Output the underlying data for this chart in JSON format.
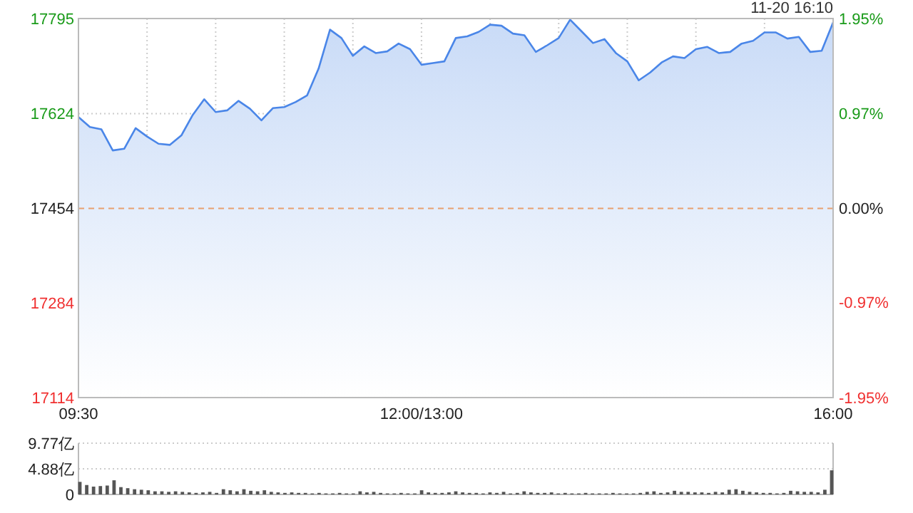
{
  "chart_data": [
    {
      "type": "line",
      "categories": [
        "09:30",
        null,
        null,
        null,
        null,
        null,
        null,
        null,
        null,
        null,
        null,
        null,
        null,
        null,
        null,
        null,
        null,
        null,
        null,
        null,
        null,
        null,
        null,
        null,
        null,
        null,
        null,
        null,
        null,
        null,
        "12:00/13:00",
        null,
        null,
        null,
        null,
        null,
        null,
        null,
        null,
        null,
        null,
        null,
        null,
        null,
        null,
        null,
        null,
        null,
        null,
        null,
        null,
        null,
        null,
        null,
        null,
        null,
        null,
        null,
        null,
        null,
        null,
        null,
        null,
        null,
        null,
        null,
        "16:00"
      ],
      "series": [
        {
          "color": "#4a86e8",
          "values": [
            17618,
            17600,
            17596,
            17558,
            17561,
            17598,
            17583,
            17570,
            17568,
            17585,
            17622,
            17650,
            17627,
            17630,
            17647,
            17633,
            17612,
            17634,
            17636,
            17645,
            17657,
            17705,
            17775,
            17760,
            17728,
            17745,
            17733,
            17736,
            17750,
            17740,
            17712,
            17715,
            17718,
            17760,
            17763,
            17771,
            17784,
            17782,
            17768,
            17765,
            17735,
            17747,
            17760,
            17793,
            17772,
            17751,
            17758,
            17733,
            17718,
            17684,
            17698,
            17716,
            17727,
            17724,
            17740,
            17744,
            17733,
            17735,
            17750,
            17755,
            17770,
            17770,
            17759,
            17762,
            17735,
            17737,
            17788
          ]
        }
      ],
      "ylim": [
        17114,
        17795
      ],
      "yticks": [
        17114,
        17284,
        17454,
        17624,
        17795
      ],
      "y2lim": [
        -1.95,
        1.95
      ],
      "y2ticks": [
        {
          "value": -1.95,
          "label": "-1.95%"
        },
        {
          "value": -0.97,
          "label": "-0.97%"
        },
        {
          "value": 0,
          "label": "0.00%"
        },
        {
          "value": 0.97,
          "label": "0.97%"
        },
        {
          "value": 1.95,
          "label": "1.95%"
        }
      ],
      "ref_lines": [
        {
          "axis": "y",
          "value": 17454,
          "color": "#e8a070",
          "line_style": "dashed"
        }
      ],
      "grid": true,
      "annotations": [
        "11-20 16:10"
      ]
    },
    {
      "type": "bar",
      "categories": [
        null,
        null,
        null,
        null,
        null,
        null,
        null,
        null,
        null,
        null,
        null,
        null,
        null,
        null,
        null,
        null,
        null,
        null,
        null,
        null,
        null,
        null,
        null,
        null,
        null,
        null,
        null,
        null,
        null,
        null,
        null,
        null,
        null,
        null,
        null,
        null,
        null,
        null,
        null,
        null,
        null,
        null,
        null,
        null,
        null,
        null,
        null,
        null,
        null,
        null,
        null,
        null,
        null,
        null,
        null,
        null,
        null,
        null,
        null,
        null,
        null,
        null,
        null,
        null,
        null,
        null,
        null,
        null,
        null,
        null,
        null,
        null,
        null,
        null,
        null,
        null,
        null,
        null,
        null,
        null,
        null,
        null,
        null,
        null,
        null,
        null,
        null,
        null,
        null,
        null,
        null,
        null,
        null,
        null,
        null,
        null,
        null,
        null,
        null,
        null,
        null,
        null,
        null,
        null,
        null,
        null,
        null,
        null,
        null,
        null,
        null
      ],
      "values": [
        2.4,
        1.8,
        1.5,
        1.6,
        1.7,
        2.7,
        1.4,
        1.2,
        1.0,
        0.9,
        0.8,
        0.6,
        0.6,
        0.5,
        0.6,
        0.5,
        0.4,
        0.3,
        0.4,
        0.5,
        0.3,
        1.0,
        0.8,
        0.6,
        1.0,
        0.7,
        0.6,
        0.8,
        0.5,
        0.4,
        0.3,
        0.4,
        0.3,
        0.3,
        0.2,
        0.3,
        0.2,
        0.2,
        0.3,
        0.2,
        0.2,
        0.6,
        0.4,
        0.5,
        0.3,
        0.2,
        0.2,
        0.3,
        0.2,
        0.2,
        0.8,
        0.4,
        0.3,
        0.3,
        0.4,
        0.6,
        0.4,
        0.3,
        0.3,
        0.2,
        0.4,
        0.3,
        0.5,
        0.2,
        0.3,
        0.6,
        0.4,
        0.3,
        0.3,
        0.4,
        0.2,
        0.3,
        0.2,
        0.2,
        0.3,
        0.2,
        0.2,
        0.2,
        0.3,
        0.2,
        0.2,
        0.2,
        0.3,
        0.5,
        0.6,
        0.3,
        0.4,
        0.7,
        0.5,
        0.5,
        0.4,
        0.4,
        0.3,
        0.5,
        0.4,
        0.9,
        1.0,
        0.7,
        0.5,
        0.4,
        0.3,
        0.3,
        0.2,
        0.3,
        0.7,
        0.6,
        0.5,
        0.5,
        0.4,
        0.9,
        4.6
      ],
      "color": "#555555",
      "ylim": [
        0,
        9.77
      ],
      "yticks": [
        0,
        {
          "value": 4.88,
          "label": "4.88亿"
        },
        {
          "value": 9.77,
          "label": "9.77亿"
        }
      ],
      "grid": "y",
      "tick_labels": "y"
    }
  ]
}
